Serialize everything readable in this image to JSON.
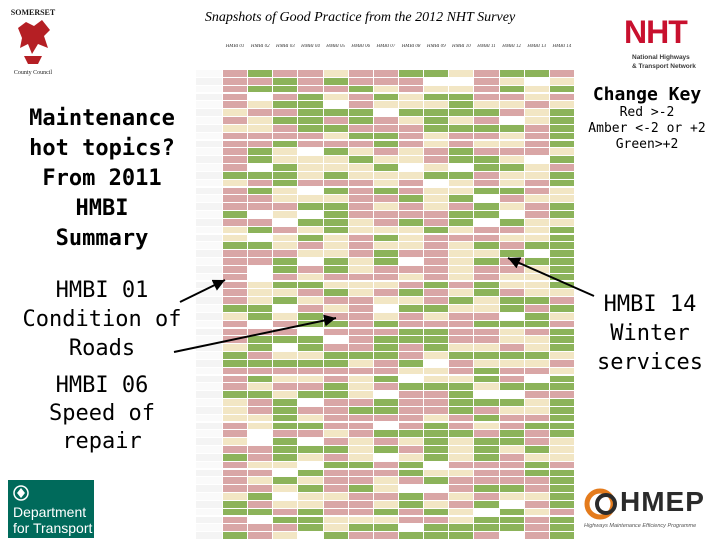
{
  "title": "Snapshots of Good Practice from the  2012 NHT  Survey",
  "logos": {
    "somerset_top": "SOMERSET",
    "somerset_bottom": "County Council",
    "nht_word": "NHT",
    "nht_line1": "National Highways",
    "nht_line2": "& Transport Network",
    "dft": "Department for Transport",
    "hmep_word": "HMEP",
    "hmep_tagline": "Highways Maintenance Efficiency Programme"
  },
  "left_panel": {
    "heading_lines": [
      "Maintenance",
      "hot topics?",
      "From 2011",
      "HMBI",
      "Summary"
    ],
    "hmbi01_lines": [
      "HMBI 01",
      "Condition of",
      "Roads"
    ],
    "hmbi06_lines": [
      "HMBI 06",
      "Speed of",
      "repair"
    ]
  },
  "change_key": {
    "title": "Change Key",
    "lines": [
      "Red >-2",
      "Amber <-2 or +2",
      "Green>+2"
    ]
  },
  "hmbi14_lines": [
    "HMBI 14",
    "Winter",
    "services"
  ],
  "colors": {
    "red": "#d9a6a6",
    "amber": "#f2e6c4",
    "green": "#8cb35a",
    "white": "#ffffff",
    "header_bg": "#ffffff",
    "dft_green": "#006a5b",
    "nht_red": "#c8102e"
  },
  "table": {
    "columns": 14,
    "rows": 60,
    "column_headers": [
      "HMBI 01",
      "HMBI 02",
      "HMBI 03",
      "HMBI 04",
      "HMBI 05",
      "HMBI 06",
      "HMBI 07",
      "HMBI 08",
      "HMBI 09",
      "HMBI 10",
      "HMBI 11",
      "HMBI 12",
      "HMBI 13",
      "HMBI 14"
    ]
  }
}
